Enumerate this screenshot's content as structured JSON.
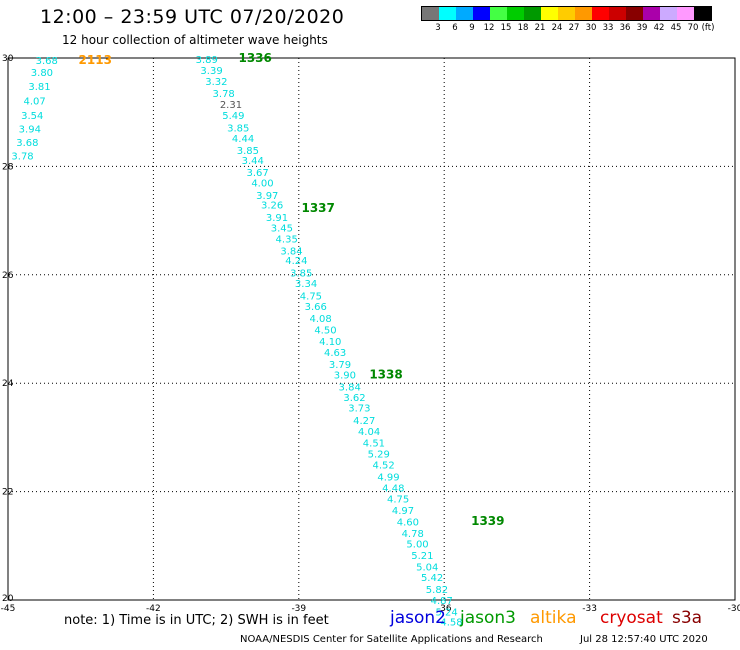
{
  "header": {
    "title": "12:00 – 23:59 UTC 07/20/2020",
    "subtitle": "12 hour collection of altimeter wave heights"
  },
  "colorbar": {
    "colors": [
      "#777777",
      "#00ffff",
      "#00aaff",
      "#0000ff",
      "#44ff44",
      "#00cc00",
      "#009900",
      "#ffff00",
      "#ffcc00",
      "#ff9900",
      "#ff0000",
      "#cc0000",
      "#880000",
      "#aa00aa",
      "#ccaaff",
      "#ff99ff",
      "#000000"
    ],
    "tick_labels": [
      "3",
      "6",
      "9",
      "12",
      "15",
      "18",
      "21",
      "24",
      "27",
      "30",
      "33",
      "36",
      "39",
      "42",
      "45",
      "70",
      "(ft)"
    ]
  },
  "map": {
    "x_ticks": [
      "-45",
      "-42",
      "-39",
      "-36",
      "-33",
      "-30"
    ],
    "y_ticks": [
      "30",
      "28",
      "26",
      "24",
      "22",
      "20"
    ],
    "lon_range": [
      -45,
      -30
    ],
    "lat_range": [
      20,
      30
    ],
    "grid": "dotted"
  },
  "tracks": [
    {
      "color": "#00dddd",
      "points": [
        {
          "lon": -44.2,
          "lat": 29.96,
          "v": "3.68"
        },
        {
          "lon": -44.3,
          "lat": 29.74,
          "v": "3.80"
        },
        {
          "lon": -44.35,
          "lat": 29.48,
          "v": "3.81"
        },
        {
          "lon": -44.45,
          "lat": 29.22,
          "v": "4.07"
        },
        {
          "lon": -44.5,
          "lat": 28.95,
          "v": "3.54"
        },
        {
          "lon": -44.55,
          "lat": 28.7,
          "v": "3.94"
        },
        {
          "lon": -44.6,
          "lat": 28.45,
          "v": "3.68"
        },
        {
          "lon": -44.7,
          "lat": 28.2,
          "v": "3.78"
        }
      ]
    },
    {
      "color": "#00dddd",
      "points": [
        {
          "lon": -40.9,
          "lat": 29.98,
          "v": "3.89"
        },
        {
          "lon": -40.8,
          "lat": 29.78,
          "v": "3.39"
        },
        {
          "lon": -40.7,
          "lat": 29.58,
          "v": "3.32"
        },
        {
          "lon": -40.55,
          "lat": 29.35,
          "v": "3.78"
        },
        {
          "lon": -40.4,
          "lat": 29.15,
          "v": "2.31",
          "color": "#555555"
        },
        {
          "lon": -40.35,
          "lat": 28.95,
          "v": "5.49"
        },
        {
          "lon": -40.25,
          "lat": 28.72,
          "v": "3.85"
        },
        {
          "lon": -40.15,
          "lat": 28.52,
          "v": "4.44"
        },
        {
          "lon": -40.05,
          "lat": 28.3,
          "v": "3.85"
        },
        {
          "lon": -39.95,
          "lat": 28.12,
          "v": "3.44"
        },
        {
          "lon": -39.85,
          "lat": 27.9,
          "v": "3.67"
        },
        {
          "lon": -39.75,
          "lat": 27.7,
          "v": "4.00"
        },
        {
          "lon": -39.65,
          "lat": 27.47,
          "v": "3.97"
        },
        {
          "lon": -39.55,
          "lat": 27.3,
          "v": "3.26"
        },
        {
          "lon": -39.45,
          "lat": 27.07,
          "v": "3.91"
        },
        {
          "lon": -39.35,
          "lat": 26.87,
          "v": "3.45"
        },
        {
          "lon": -39.25,
          "lat": 26.67,
          "v": "4.35"
        },
        {
          "lon": -39.15,
          "lat": 26.45,
          "v": "3.84"
        },
        {
          "lon": -39.05,
          "lat": 26.27,
          "v": "4.24"
        },
        {
          "lon": -38.95,
          "lat": 26.04,
          "v": "3.85"
        },
        {
          "lon": -38.85,
          "lat": 25.85,
          "v": "3.34"
        },
        {
          "lon": -38.75,
          "lat": 25.62,
          "v": "4.75"
        },
        {
          "lon": -38.65,
          "lat": 25.42,
          "v": "3.66"
        },
        {
          "lon": -38.55,
          "lat": 25.2,
          "v": "4.08"
        },
        {
          "lon": -38.45,
          "lat": 24.99,
          "v": "4.50"
        },
        {
          "lon": -38.35,
          "lat": 24.78,
          "v": "4.10"
        },
        {
          "lon": -38.25,
          "lat": 24.58,
          "v": "4.63"
        },
        {
          "lon": -38.15,
          "lat": 24.35,
          "v": "3.79"
        },
        {
          "lon": -38.05,
          "lat": 24.16,
          "v": "3.90"
        },
        {
          "lon": -37.95,
          "lat": 23.94,
          "v": "3.84"
        },
        {
          "lon": -37.85,
          "lat": 23.75,
          "v": "3.62"
        },
        {
          "lon": -37.75,
          "lat": 23.55,
          "v": "3.73"
        },
        {
          "lon": -37.65,
          "lat": 23.32,
          "v": "4.27"
        },
        {
          "lon": -37.55,
          "lat": 23.12,
          "v": "4.04"
        },
        {
          "lon": -37.45,
          "lat": 22.91,
          "v": "4.51"
        },
        {
          "lon": -37.35,
          "lat": 22.7,
          "v": "5.29"
        },
        {
          "lon": -37.25,
          "lat": 22.5,
          "v": "4.52"
        },
        {
          "lon": -37.15,
          "lat": 22.28,
          "v": "4.99"
        },
        {
          "lon": -37.05,
          "lat": 22.08,
          "v": "4.48"
        },
        {
          "lon": -36.95,
          "lat": 21.87,
          "v": "4.75"
        },
        {
          "lon": -36.85,
          "lat": 21.66,
          "v": "4.97"
        },
        {
          "lon": -36.75,
          "lat": 21.45,
          "v": "4.60"
        },
        {
          "lon": -36.65,
          "lat": 21.24,
          "v": "4.78"
        },
        {
          "lon": -36.55,
          "lat": 21.04,
          "v": "5.00"
        },
        {
          "lon": -36.45,
          "lat": 20.83,
          "v": "5.21"
        },
        {
          "lon": -36.35,
          "lat": 20.62,
          "v": "5.04"
        },
        {
          "lon": -36.25,
          "lat": 20.42,
          "v": "5.42"
        },
        {
          "lon": -36.15,
          "lat": 20.2,
          "v": "5.82"
        },
        {
          "lon": -36.05,
          "lat": 20.0,
          "v": "4.87"
        },
        {
          "lon": -35.95,
          "lat": 19.79,
          "v": "5.24"
        },
        {
          "lon": -35.85,
          "lat": 19.6,
          "v": "4.58"
        }
      ]
    }
  ],
  "pass_labels": [
    {
      "text": "2113",
      "color": "#ff9900",
      "lon": -43.2,
      "lat": 29.96
    },
    {
      "text": "1336",
      "color": "#008800",
      "lon": -39.9,
      "lat": 30.0
    },
    {
      "text": "1337",
      "color": "#008800",
      "lon": -38.6,
      "lat": 27.23
    },
    {
      "text": "1338",
      "color": "#008800",
      "lon": -37.2,
      "lat": 24.16
    },
    {
      "text": "1339",
      "color": "#008800",
      "lon": -35.1,
      "lat": 21.46
    }
  ],
  "footer": {
    "note": "note: 1) Time is in UTC; 2) SWH is in feet",
    "legend": [
      {
        "name": "jason2",
        "color": "#0000dd"
      },
      {
        "name": "jason3",
        "color": "#009900"
      },
      {
        "name": "altika",
        "color": "#ff9900"
      },
      {
        "name": "cryosat",
        "color": "#dd0000"
      },
      {
        "name": "s3a",
        "color": "#880000"
      }
    ],
    "credit": "NOAA/NESDIS Center for Satellite Applications and Research",
    "timestamp": "Jul 28 12:57:40 UTC 2020"
  }
}
